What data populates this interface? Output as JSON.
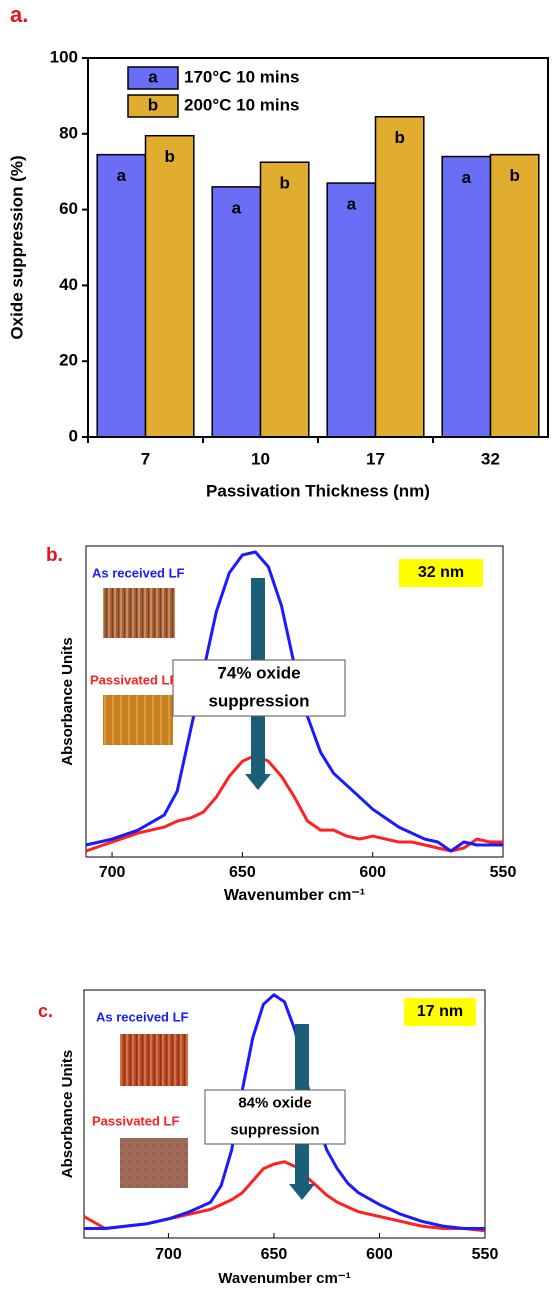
{
  "chart_data": [
    {
      "type": "bar",
      "label": "a.",
      "xlabel": "Passivation Thickness (nm)",
      "ylabel": "Oxide suppression (%)",
      "categories": [
        "7",
        "10",
        "17",
        "32"
      ],
      "series": [
        {
          "name": "170°C 10 mins",
          "symbol": "a",
          "color": "#6a6ef5",
          "values": [
            74.5,
            66,
            67,
            74
          ]
        },
        {
          "name": "200°C 10 mins",
          "symbol": "b",
          "color": "#e0ad2e",
          "values": [
            79.5,
            72.5,
            84.5,
            74.5
          ]
        }
      ],
      "ylim": [
        0,
        100
      ],
      "yticks": [
        0,
        20,
        40,
        60,
        80,
        100
      ]
    },
    {
      "type": "line",
      "label": "b.",
      "xlabel": "Wavenumber cm⁻¹",
      "ylabel": "Absorbance Units",
      "thickness": "32 nm",
      "annotation": [
        "74% oxide",
        "suppression"
      ],
      "sample_labels": [
        "As received LF",
        "Passivated LF"
      ],
      "x": [
        710,
        700,
        690,
        680,
        675,
        670,
        665,
        660,
        655,
        650,
        645,
        640,
        635,
        630,
        625,
        620,
        615,
        610,
        605,
        600,
        595,
        590,
        585,
        580,
        575,
        570,
        565,
        560,
        555,
        550
      ],
      "series": [
        {
          "name": "As received LF",
          "color": "#1a1aff",
          "values": [
            0.02,
            0.04,
            0.07,
            0.12,
            0.2,
            0.4,
            0.6,
            0.8,
            0.93,
            0.99,
            1.0,
            0.95,
            0.82,
            0.62,
            0.45,
            0.33,
            0.26,
            0.22,
            0.18,
            0.14,
            0.11,
            0.08,
            0.06,
            0.04,
            0.03,
            0.0,
            0.03,
            0.02,
            0.02,
            0.02
          ]
        },
        {
          "name": "Passivated LF",
          "color": "#ff2020",
          "values": [
            0.0,
            0.03,
            0.06,
            0.08,
            0.1,
            0.11,
            0.13,
            0.18,
            0.25,
            0.3,
            0.32,
            0.3,
            0.25,
            0.18,
            0.1,
            0.07,
            0.07,
            0.05,
            0.04,
            0.05,
            0.04,
            0.03,
            0.03,
            0.02,
            0.01,
            0.0,
            0.01,
            0.04,
            0.03,
            0.03
          ]
        }
      ],
      "xlim": [
        710,
        550
      ],
      "xticks": [
        700,
        650,
        600,
        550
      ],
      "ylim": [
        -0.02,
        1.02
      ],
      "yticks": []
    },
    {
      "type": "line",
      "label": "c.",
      "xlabel": "Wavenumber cm⁻¹",
      "ylabel": "Absorbance Units",
      "thickness": "17 nm",
      "annotation": [
        "84% oxide",
        "suppression"
      ],
      "sample_labels": [
        "As received LF",
        "Passivated LF"
      ],
      "x": [
        740,
        730,
        720,
        710,
        700,
        690,
        680,
        675,
        670,
        665,
        660,
        655,
        650,
        645,
        640,
        635,
        630,
        625,
        620,
        615,
        610,
        600,
        590,
        580,
        570,
        560,
        550
      ],
      "series": [
        {
          "name": "As received LF",
          "color": "#1a1aff",
          "values": [
            0.02,
            0.02,
            0.03,
            0.04,
            0.06,
            0.09,
            0.13,
            0.2,
            0.35,
            0.6,
            0.82,
            0.96,
            1.0,
            0.97,
            0.85,
            0.65,
            0.48,
            0.35,
            0.27,
            0.21,
            0.17,
            0.12,
            0.08,
            0.05,
            0.03,
            0.02,
            0.02
          ]
        },
        {
          "name": "Passivated LF",
          "color": "#ff2020",
          "values": [
            0.07,
            0.02,
            0.03,
            0.04,
            0.06,
            0.08,
            0.1,
            0.12,
            0.14,
            0.17,
            0.22,
            0.27,
            0.29,
            0.3,
            0.28,
            0.24,
            0.2,
            0.16,
            0.13,
            0.11,
            0.09,
            0.07,
            0.05,
            0.03,
            0.02,
            0.02,
            0.01
          ]
        }
      ],
      "xlim": [
        740,
        550
      ],
      "xticks": [
        700,
        650,
        600,
        550
      ],
      "ylim": [
        -0.02,
        1.02
      ],
      "yticks": []
    }
  ]
}
